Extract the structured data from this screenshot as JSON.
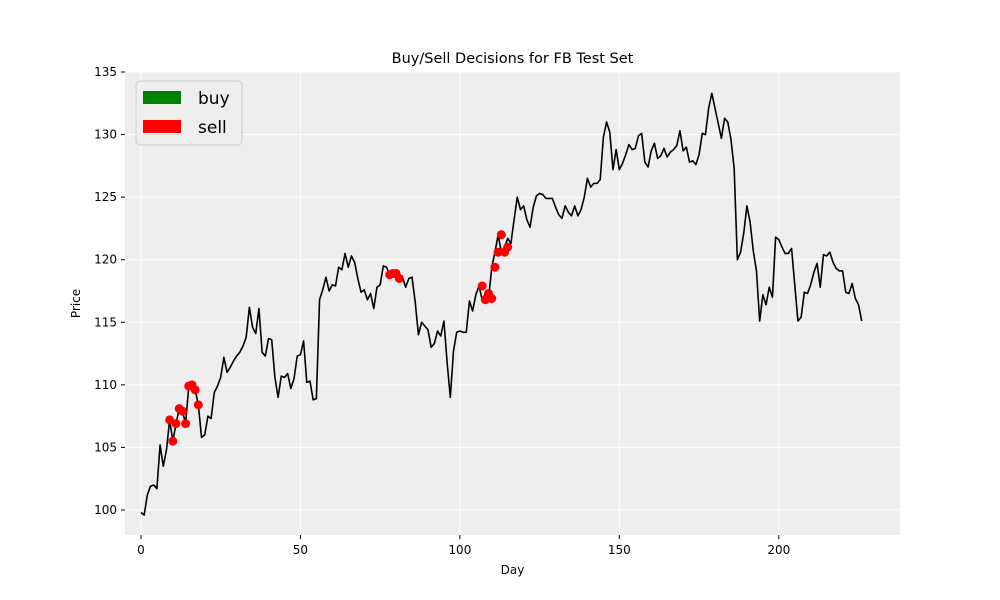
{
  "chart_data": {
    "type": "line",
    "title": "Buy/Sell Decisions for FB Test Set",
    "xlabel": "Day",
    "ylabel": "Price",
    "xlim": [
      -5,
      238
    ],
    "ylim": [
      98,
      135
    ],
    "xticks": [
      0,
      50,
      100,
      150,
      200
    ],
    "yticks": [
      100,
      105,
      110,
      115,
      120,
      125,
      130,
      135
    ],
    "grid": true,
    "legend_position": "top-left",
    "colors": {
      "line": "#000000",
      "buy": "#008000",
      "sell": "#ff0000",
      "background": "#eeeeee",
      "grid": "#ffffff"
    },
    "legend": [
      {
        "label": "buy",
        "color": "#008000"
      },
      {
        "label": "sell",
        "color": "#ff0000"
      }
    ],
    "series": [
      {
        "kind": "line",
        "color": "#000000",
        "x_start": 0,
        "values": [
          99.8,
          99.6,
          101.2,
          101.9,
          102.0,
          101.7,
          105.2,
          103.5,
          104.8,
          107.2,
          105.5,
          106.9,
          108.1,
          107.9,
          106.9,
          109.9,
          110.0,
          109.6,
          108.4,
          105.8,
          106.0,
          107.5,
          107.3,
          109.4,
          109.9,
          110.6,
          112.2,
          111.0,
          111.4,
          111.9,
          112.3,
          112.6,
          113.1,
          113.8,
          116.2,
          114.6,
          114.1,
          116.1,
          112.6,
          112.3,
          113.7,
          113.6,
          110.6,
          109.0,
          110.7,
          110.6,
          110.9,
          109.7,
          110.5,
          112.3,
          112.4,
          113.5,
          110.2,
          110.3,
          108.8,
          108.9,
          116.8,
          117.6,
          118.6,
          117.5,
          118.0,
          117.9,
          119.4,
          119.2,
          120.5,
          119.4,
          120.3,
          119.8,
          118.5,
          117.4,
          117.6,
          116.8,
          117.3,
          116.1,
          117.8,
          118.0,
          119.5,
          119.4,
          118.8,
          118.9,
          118.9,
          118.5,
          118.6,
          117.8,
          118.5,
          118.6,
          116.6,
          114.0,
          115.0,
          114.7,
          114.4,
          113.0,
          113.3,
          114.3,
          113.9,
          115.1,
          111.8,
          109.0,
          112.7,
          114.2,
          114.3,
          114.2,
          114.2,
          116.7,
          115.9,
          117.2,
          117.9,
          116.8,
          117.3,
          116.9,
          119.4,
          120.6,
          122.0,
          120.6,
          121.0,
          121.7,
          121.3,
          123.2,
          125.0,
          124.0,
          124.3,
          123.2,
          122.6,
          124.2,
          125.1,
          125.3,
          125.2,
          124.9,
          124.9,
          124.9,
          124.2,
          123.6,
          123.3,
          124.3,
          123.8,
          123.5,
          124.3,
          123.5,
          124.0,
          125.0,
          126.5,
          125.8,
          126.1,
          126.1,
          126.4,
          129.8,
          131.0,
          130.2,
          127.2,
          128.8,
          127.2,
          127.7,
          128.4,
          129.2,
          128.8,
          128.9,
          129.9,
          130.1,
          127.8,
          127.4,
          128.7,
          129.3,
          128.1,
          128.3,
          128.9,
          128.2,
          128.6,
          128.8,
          129.1,
          130.3,
          128.7,
          129.0,
          127.8,
          127.9,
          127.6,
          128.4,
          130.1,
          130.0,
          132.1,
          133.3,
          132.1,
          130.9,
          129.7,
          131.3,
          131.0,
          129.6,
          127.3,
          120.0,
          120.6,
          122.1,
          124.3,
          123.0,
          120.7,
          119.1,
          115.1,
          117.2,
          116.4,
          117.8,
          117.0,
          121.8,
          121.6,
          121.0,
          120.5,
          120.5,
          120.9,
          118.0,
          115.1,
          115.4,
          117.4,
          117.3,
          118.0,
          119.0,
          119.7,
          117.8,
          120.4,
          120.3,
          120.6,
          119.8,
          119.3,
          119.1,
          119.1,
          117.4,
          117.3,
          118.1,
          116.9,
          116.4,
          115.1
        ]
      },
      {
        "kind": "scatter",
        "name": "sell",
        "color": "#ff0000",
        "points": [
          [
            9,
            107.2
          ],
          [
            10,
            105.5
          ],
          [
            11,
            106.9
          ],
          [
            12,
            108.1
          ],
          [
            13,
            107.9
          ],
          [
            14,
            106.9
          ],
          [
            15,
            109.9
          ],
          [
            16,
            110.0
          ],
          [
            17,
            109.6
          ],
          [
            18,
            108.4
          ],
          [
            78,
            118.8
          ],
          [
            79,
            118.9
          ],
          [
            80,
            118.9
          ],
          [
            81,
            118.5
          ],
          [
            107,
            117.9
          ],
          [
            108,
            116.8
          ],
          [
            109,
            117.3
          ],
          [
            110,
            116.9
          ],
          [
            111,
            119.4
          ],
          [
            112,
            120.6
          ],
          [
            113,
            122.0
          ],
          [
            114,
            120.6
          ],
          [
            115,
            121.0
          ]
        ]
      }
    ]
  }
}
